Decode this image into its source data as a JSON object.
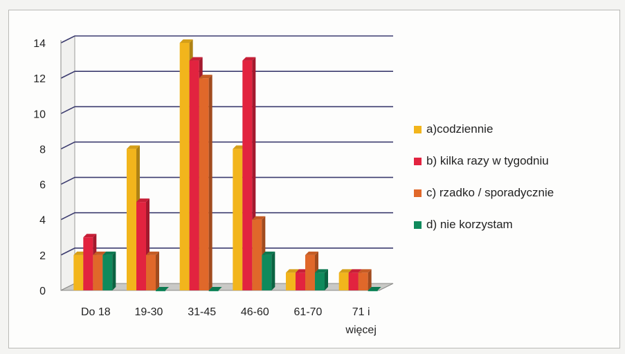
{
  "chart_data": {
    "type": "bar",
    "categories": [
      "Do 18",
      "19-30",
      "31-45",
      "46-60",
      "61-70",
      "71 i więcej"
    ],
    "category_lines": [
      [
        "Do 18"
      ],
      [
        "19-30"
      ],
      [
        "31-45"
      ],
      [
        "46-60"
      ],
      [
        "61-70"
      ],
      [
        "71 i",
        "więcej"
      ]
    ],
    "series": [
      {
        "name": "a)codziennie",
        "values": [
          2,
          8,
          14,
          8,
          1,
          1
        ],
        "color": "#f2b51c"
      },
      {
        "name": "b) kilka razy w tygodniu",
        "values": [
          3,
          5,
          13,
          13,
          1,
          1
        ],
        "color": "#e2233f"
      },
      {
        "name": "c) rzadko / sporadycznie",
        "values": [
          2,
          2,
          12,
          4,
          2,
          1
        ],
        "color": "#e0682a"
      },
      {
        "name": "d) nie korzystam",
        "values": [
          2,
          0,
          0,
          2,
          1,
          0
        ],
        "color": "#0f8a5c"
      }
    ],
    "ylim": [
      0,
      14
    ],
    "yticks": [
      0,
      2,
      4,
      6,
      8,
      10,
      12,
      14
    ],
    "grid": true,
    "legend_position": "right",
    "title": "",
    "xlabel": "",
    "ylabel": ""
  }
}
